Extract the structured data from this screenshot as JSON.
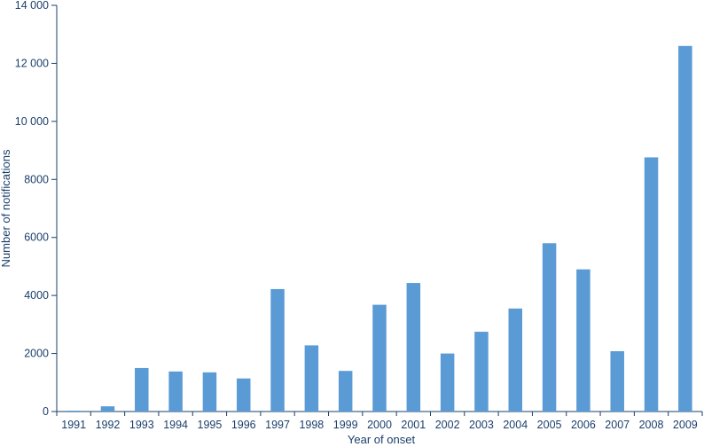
{
  "chart_data": {
    "type": "bar",
    "title": "",
    "xlabel": "Year of onset",
    "ylabel": "Number of notifications",
    "ylim": [
      0,
      14000
    ],
    "yticks": [
      0,
      2000,
      4000,
      6000,
      8000,
      10000,
      12000,
      14000
    ],
    "ytick_labels": [
      "0",
      "2000",
      "4000",
      "6000",
      "8000",
      "10 000",
      "12 000",
      "14 000"
    ],
    "categories": [
      "1991",
      "1992",
      "1993",
      "1994",
      "1995",
      "1996",
      "1997",
      "1998",
      "1999",
      "2000",
      "2001",
      "2002",
      "2003",
      "2004",
      "2005",
      "2006",
      "2007",
      "2008",
      "2009"
    ],
    "values": [
      30,
      180,
      1500,
      1380,
      1350,
      1140,
      4220,
      2280,
      1400,
      3680,
      4430,
      2000,
      2750,
      3550,
      5800,
      4900,
      2080,
      8760,
      12600
    ],
    "colors": {
      "bar": "#5b9bd5",
      "axis": "#1b3f6b",
      "text": "#1b3f6b"
    },
    "grid": false,
    "legend": "none"
  }
}
